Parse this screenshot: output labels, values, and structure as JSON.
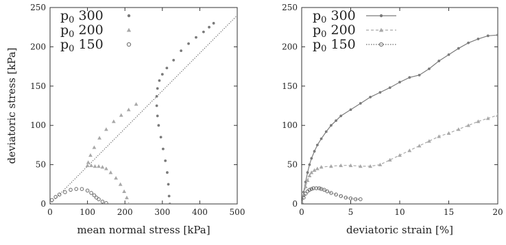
{
  "chart_data": [
    {
      "type": "scatter",
      "xlabel": "mean normal stress [kPa]",
      "ylabel": "deviatoric stress [kPa]",
      "xlim": [
        0,
        500
      ],
      "ylim": [
        0,
        250
      ],
      "xticks": [
        "0",
        "100",
        "200",
        "300",
        "400",
        "500"
      ],
      "yticks": [
        "0",
        "50",
        "100",
        "150",
        "200",
        "250"
      ],
      "grid": false,
      "legend_position": "top-left",
      "reference_line": {
        "style": "dotted",
        "slope": 0.48,
        "intercept": 0
      },
      "series": [
        {
          "name": "p0 300",
          "name_main": "p",
          "name_sub": "0",
          "name_rest": " 300",
          "color": "#7a7a7a",
          "marker": "filled-circle",
          "x": [
            320,
            318,
            316,
            313,
            308,
            302,
            296,
            290,
            287,
            285,
            285,
            287,
            292,
            300,
            312,
            330,
            350,
            370,
            390,
            410,
            425,
            437
          ],
          "y": [
            0,
            10,
            25,
            40,
            55,
            70,
            85,
            100,
            112,
            125,
            137,
            147,
            157,
            165,
            173,
            183,
            195,
            204,
            212,
            219,
            225,
            230
          ]
        },
        {
          "name": "p0 200",
          "name_main": "p",
          "name_sub": "0",
          "name_rest": " 200",
          "color": "#a8a8a8",
          "marker": "triangle",
          "x": [
            210,
            205,
            198,
            188,
            176,
            162,
            150,
            140,
            130,
            120,
            110,
            100,
            102,
            108,
            118,
            132,
            150,
            170,
            190,
            210,
            230
          ],
          "y": [
            0,
            8,
            16,
            25,
            33,
            40,
            45,
            47,
            48,
            48,
            49,
            49,
            53,
            62,
            72,
            84,
            95,
            105,
            113,
            120,
            127
          ]
        },
        {
          "name": "p0 150",
          "name_main": "p",
          "name_sub": "0",
          "name_rest": " 150",
          "color": "#6a6a6a",
          "marker": "open-circle",
          "x": [
            5,
            15,
            25,
            40,
            55,
            70,
            85,
            100,
            110,
            118,
            124,
            130,
            140,
            150
          ],
          "y": [
            5,
            9,
            12,
            15,
            18,
            19,
            19,
            17,
            14,
            11,
            8,
            6,
            3,
            1
          ]
        }
      ]
    },
    {
      "type": "line",
      "xlabel": "deviatoric strain [%]",
      "ylabel": "",
      "xlim": [
        0,
        20
      ],
      "ylim": [
        0,
        250
      ],
      "xticks": [
        "0",
        "5",
        "10",
        "15",
        "20"
      ],
      "yticks": [
        "0",
        "50",
        "100",
        "150",
        "200",
        "250"
      ],
      "grid": false,
      "legend_position": "top-left",
      "series": [
        {
          "name": "p0 300",
          "name_main": "p",
          "name_sub": "0",
          "name_rest": " 300",
          "color": "#7a7a7a",
          "dash": "solid",
          "marker": "filled-circle",
          "x": [
            0,
            0.2,
            0.4,
            0.6,
            0.8,
            1.0,
            1.3,
            1.6,
            2.0,
            2.5,
            3.0,
            3.5,
            4.0,
            5.0,
            6.0,
            7.0,
            8.0,
            9.0,
            10.0,
            11.0,
            12.0,
            13.0,
            14.0,
            15.0,
            16.0,
            17.0,
            18.0,
            19.0,
            20.0
          ],
          "y": [
            0,
            15,
            28,
            40,
            50,
            58,
            67,
            75,
            83,
            92,
            100,
            106,
            112,
            120,
            128,
            136,
            142,
            148,
            155,
            161,
            164,
            172,
            182,
            190,
            198,
            205,
            210,
            214,
            215
          ]
        },
        {
          "name": "p0 200",
          "name_main": "p",
          "name_sub": "0",
          "name_rest": " 200",
          "color": "#a8a8a8",
          "dash": "dashed",
          "marker": "triangle",
          "x": [
            0,
            0.2,
            0.4,
            0.6,
            0.8,
            1.0,
            1.3,
            1.6,
            2.0,
            3.0,
            4.0,
            5.0,
            6.0,
            7.0,
            8.0,
            9.0,
            10.0,
            11.0,
            12.0,
            13.0,
            14.0,
            15.0,
            16.0,
            17.0,
            18.0,
            19.0,
            20.0
          ],
          "y": [
            0,
            12,
            22,
            30,
            36,
            40,
            43,
            45,
            47,
            48,
            49,
            49,
            48,
            48,
            50,
            56,
            62,
            68,
            74,
            80,
            86,
            90,
            95,
            100,
            105,
            109,
            113
          ]
        },
        {
          "name": "p0 150",
          "name_main": "p",
          "name_sub": "0",
          "name_rest": " 150",
          "color": "#6a6a6a",
          "dash": "dotted",
          "marker": "open-circle",
          "x": [
            0,
            0.2,
            0.4,
            0.6,
            0.8,
            1.0,
            1.2,
            1.5,
            1.8,
            2.0,
            2.3,
            2.6,
            3.0,
            3.5,
            4.0,
            4.5,
            5.0,
            5.5,
            6.0
          ],
          "y": [
            0,
            8,
            13,
            16,
            18,
            19,
            20,
            20,
            20,
            19,
            18,
            16,
            14,
            12,
            10,
            8,
            7,
            6,
            6
          ]
        }
      ]
    }
  ]
}
